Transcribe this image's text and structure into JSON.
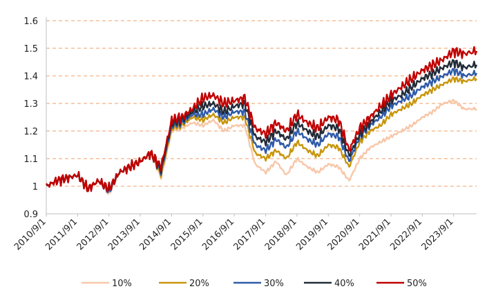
{
  "chart_data": {
    "type": "line",
    "ylim": [
      0.9,
      1.6
    ],
    "yticks": [
      0.9,
      1.0,
      1.1,
      1.2,
      1.3,
      1.4,
      1.5,
      1.6
    ],
    "ytick_labels": [
      "0.9",
      "1",
      "1.1",
      "1.2",
      "1.3",
      "1.4",
      "1.5",
      "1.6"
    ],
    "xlim": [
      2010.667,
      2024.4
    ],
    "xtick_labels": [
      "2010/9/1",
      "2011/9/1",
      "2012/9/1",
      "2013/9/1",
      "2014/9/1",
      "2015/9/1",
      "2016/9/1",
      "2017/9/1",
      "2018/9/1",
      "2019/9/1",
      "2020/9/1",
      "2021/9/1",
      "2022/9/1",
      "2023/9/1"
    ],
    "grid": "horizontal dashed",
    "legend_position": "bottom",
    "x": [
      2010.67,
      2011.0,
      2011.33,
      2011.67,
      2012.0,
      2012.33,
      2012.67,
      2013.0,
      2013.33,
      2013.67,
      2014.0,
      2014.33,
      2014.67,
      2015.0,
      2015.33,
      2015.67,
      2016.0,
      2016.33,
      2016.67,
      2017.0,
      2017.33,
      2017.67,
      2018.0,
      2018.33,
      2018.67,
      2019.0,
      2019.33,
      2019.67,
      2020.0,
      2020.33,
      2020.67,
      2021.0,
      2021.33,
      2021.67,
      2022.0,
      2022.33,
      2022.67,
      2023.0,
      2023.33,
      2023.67,
      2024.0,
      2024.4
    ],
    "series": [
      {
        "name": "10%",
        "color": "#f7c7a8",
        "values": [
          1.0,
          1.02,
          1.03,
          1.04,
          0.99,
          1.02,
          0.97,
          1.05,
          1.07,
          1.09,
          1.12,
          1.03,
          1.2,
          1.21,
          1.23,
          1.22,
          1.24,
          1.2,
          1.22,
          1.22,
          1.08,
          1.05,
          1.09,
          1.04,
          1.1,
          1.07,
          1.05,
          1.08,
          1.07,
          1.02,
          1.1,
          1.14,
          1.16,
          1.18,
          1.2,
          1.22,
          1.25,
          1.27,
          1.3,
          1.31,
          1.28,
          1.28
        ]
      },
      {
        "name": "20%",
        "color": "#c8960c",
        "values": [
          1.0,
          1.02,
          1.03,
          1.04,
          0.99,
          1.02,
          0.98,
          1.05,
          1.07,
          1.09,
          1.12,
          1.04,
          1.21,
          1.22,
          1.25,
          1.24,
          1.26,
          1.23,
          1.25,
          1.25,
          1.12,
          1.1,
          1.13,
          1.1,
          1.16,
          1.13,
          1.11,
          1.15,
          1.14,
          1.07,
          1.16,
          1.2,
          1.22,
          1.26,
          1.28,
          1.3,
          1.33,
          1.35,
          1.37,
          1.39,
          1.38,
          1.39
        ]
      },
      {
        "name": "30%",
        "color": "#2e5aa8",
        "values": [
          1.0,
          1.02,
          1.03,
          1.04,
          0.99,
          1.02,
          0.98,
          1.05,
          1.07,
          1.09,
          1.12,
          1.05,
          1.22,
          1.23,
          1.26,
          1.26,
          1.28,
          1.25,
          1.27,
          1.27,
          1.15,
          1.13,
          1.17,
          1.14,
          1.2,
          1.17,
          1.15,
          1.19,
          1.18,
          1.09,
          1.18,
          1.22,
          1.25,
          1.29,
          1.31,
          1.33,
          1.36,
          1.38,
          1.4,
          1.42,
          1.4,
          1.41
        ]
      },
      {
        "name": "40%",
        "color": "#222b38",
        "values": [
          1.0,
          1.02,
          1.03,
          1.04,
          0.99,
          1.02,
          0.99,
          1.05,
          1.07,
          1.09,
          1.12,
          1.06,
          1.23,
          1.24,
          1.27,
          1.29,
          1.3,
          1.27,
          1.29,
          1.3,
          1.18,
          1.16,
          1.2,
          1.17,
          1.23,
          1.2,
          1.18,
          1.22,
          1.21,
          1.11,
          1.19,
          1.23,
          1.27,
          1.31,
          1.33,
          1.36,
          1.39,
          1.41,
          1.43,
          1.45,
          1.43,
          1.44
        ]
      },
      {
        "name": "50%",
        "color": "#c00000",
        "values": [
          1.0,
          1.02,
          1.03,
          1.04,
          0.99,
          1.02,
          0.99,
          1.05,
          1.07,
          1.09,
          1.12,
          1.07,
          1.24,
          1.25,
          1.28,
          1.32,
          1.33,
          1.3,
          1.31,
          1.32,
          1.21,
          1.19,
          1.23,
          1.2,
          1.26,
          1.23,
          1.21,
          1.25,
          1.24,
          1.13,
          1.21,
          1.25,
          1.29,
          1.33,
          1.36,
          1.39,
          1.42,
          1.44,
          1.46,
          1.49,
          1.48,
          1.49
        ]
      }
    ]
  }
}
